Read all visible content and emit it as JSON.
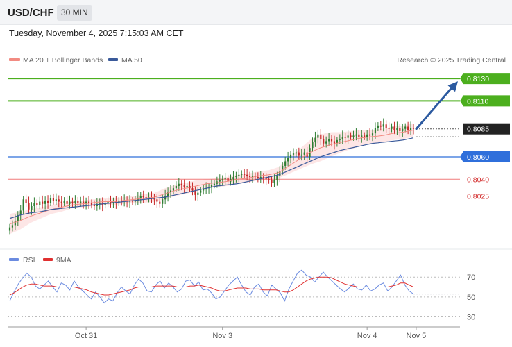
{
  "header": {
    "symbol": "USD/CHF",
    "timeframe": "30 MIN",
    "datetime": "Tuesday, November 4, 2025 7:15:03 AM CET"
  },
  "legend": {
    "ma20_label": "MA 20 + Bollinger Bands",
    "ma50_label": "MA 50",
    "credit": "Research © 2025 Trading Central",
    "rsi_label": "RSI",
    "ma9_label": "9MA"
  },
  "colors": {
    "up_candle": "#2e7d32",
    "down_candle": "#c62828",
    "ma20": "#f28b82",
    "bollinger_fill": "#fde3e3",
    "ma50": "#3a5a9a",
    "resistance": "#4caf1e",
    "support_blue": "#2f6fdb",
    "support_red": "#f07a7a",
    "current_price_bg": "#222222",
    "arrow": "#2c5aa0",
    "rsi": "#6b8be0",
    "rsi_ma": "#e03030"
  },
  "chart_data": [
    {
      "type": "candlestick",
      "title": "",
      "price_levels": [
        {
          "value": "0.8130",
          "kind": "resistance"
        },
        {
          "value": "0.8110",
          "kind": "resistance"
        },
        {
          "value": "0.8085",
          "kind": "current"
        },
        {
          "value": "0.8060",
          "kind": "support"
        },
        {
          "value": "0.8040",
          "kind": "support"
        },
        {
          "value": "0.8025",
          "kind": "support"
        }
      ],
      "ylim": [
        0.7985,
        0.814
      ],
      "x_ticks": [
        "Oct 31",
        "Nov 3",
        "Nov 4",
        "Nov 5"
      ],
      "x_tick_index": [
        28,
        78,
        131,
        149
      ],
      "closes": [
        0.7997,
        0.7999,
        0.8003,
        0.8008,
        0.8012,
        0.8022,
        0.8019,
        0.8013,
        0.8016,
        0.8019,
        0.8017,
        0.802,
        0.8018,
        0.8021,
        0.8019,
        0.8023,
        0.8021,
        0.8022,
        0.802,
        0.8019,
        0.8021,
        0.8018,
        0.802,
        0.8019,
        0.8021,
        0.8019,
        0.802,
        0.8018,
        0.802,
        0.8019,
        0.8017,
        0.8016,
        0.8018,
        0.8019,
        0.8017,
        0.8019,
        0.802,
        0.8019,
        0.802,
        0.8019,
        0.8021,
        0.802,
        0.8021,
        0.802,
        0.8021,
        0.802,
        0.8021,
        0.8023,
        0.8025,
        0.8024,
        0.8023,
        0.8024,
        0.8023,
        0.8022,
        0.802,
        0.8018,
        0.8022,
        0.8025,
        0.8029,
        0.803,
        0.8032,
        0.8034,
        0.8036,
        0.8035,
        0.8033,
        0.8034,
        0.8032,
        0.803,
        0.8026,
        0.8028,
        0.803,
        0.8031,
        0.8032,
        0.8033,
        0.8035,
        0.8036,
        0.8038,
        0.8039,
        0.804,
        0.8041,
        0.8038,
        0.804,
        0.8042,
        0.8043,
        0.8044,
        0.8045,
        0.8044,
        0.8043,
        0.8042,
        0.8043,
        0.8042,
        0.8041,
        0.8042,
        0.8041,
        0.804,
        0.8039,
        0.8037,
        0.8039,
        0.8043,
        0.8047,
        0.8052,
        0.8056,
        0.8059,
        0.8062,
        0.8063,
        0.8064,
        0.8061,
        0.8062,
        0.8064,
        0.806,
        0.8068,
        0.8073,
        0.8077,
        0.808,
        0.8076,
        0.8072,
        0.8074,
        0.8076,
        0.8074,
        0.8072,
        0.8075,
        0.8076,
        0.8078,
        0.8077,
        0.8079,
        0.8078,
        0.8079,
        0.808,
        0.8078,
        0.8079,
        0.8078,
        0.808,
        0.8079,
        0.8081,
        0.8086,
        0.8088,
        0.8087,
        0.8089,
        0.8086,
        0.8085,
        0.8087,
        0.8084,
        0.8086,
        0.8083,
        0.8085,
        0.8087,
        0.8084,
        0.8086,
        0.8085
      ],
      "ma20_series": [
        0.8,
        0.8003,
        0.8007,
        0.801,
        0.8013,
        0.8015,
        0.8017,
        0.8018,
        0.8019,
        0.802,
        0.802,
        0.8021,
        0.8022,
        0.8023,
        0.8024,
        0.8027,
        0.803,
        0.8032,
        0.8034,
        0.8036,
        0.8037,
        0.8038,
        0.804,
        0.8041,
        0.8043,
        0.8044,
        0.8046,
        0.8052,
        0.8058,
        0.8064,
        0.8068,
        0.8071,
        0.8073,
        0.8075,
        0.8077,
        0.8078,
        0.8079,
        0.8081,
        0.8082,
        0.8084
      ],
      "ma50_series": [
        0.8005,
        0.8008,
        0.801,
        0.8011,
        0.8013,
        0.8014,
        0.8015,
        0.8016,
        0.8017,
        0.8018,
        0.8019,
        0.802,
        0.8021,
        0.8022,
        0.8023,
        0.8024,
        0.8026,
        0.8028,
        0.803,
        0.8032,
        0.8034,
        0.8035,
        0.8036,
        0.8038,
        0.804,
        0.8042,
        0.8044,
        0.8048,
        0.8052,
        0.8056,
        0.806,
        0.8063,
        0.8066,
        0.8068,
        0.807,
        0.8072,
        0.8073,
        0.8074,
        0.8075,
        0.8077
      ],
      "bb_width": [
        0.0009,
        0.0008,
        0.0006,
        0.0005,
        0.0004,
        0.0004,
        0.0003,
        0.0003,
        0.0003,
        0.0003,
        0.0003,
        0.0003,
        0.0003,
        0.0004,
        0.0004,
        0.0005,
        0.0005,
        0.0005,
        0.0005,
        0.0004,
        0.0004,
        0.0004,
        0.0004,
        0.0004,
        0.0004,
        0.0004,
        0.0005,
        0.0007,
        0.0009,
        0.0011,
        0.0012,
        0.0011,
        0.0009,
        0.0008,
        0.0007,
        0.0006,
        0.0006,
        0.0006,
        0.0006,
        0.0006
      ],
      "projection_target": 0.813
    },
    {
      "type": "line",
      "title": "",
      "series": [
        {
          "name": "RSI"
        },
        {
          "name": "9MA"
        }
      ],
      "y_ticks": [
        70,
        50,
        30
      ],
      "ylim": [
        22,
        82
      ],
      "rsi": [
        46,
        55,
        63,
        69,
        74,
        70,
        61,
        58,
        62,
        66,
        60,
        55,
        64,
        62,
        57,
        66,
        60,
        56,
        52,
        48,
        55,
        50,
        44,
        48,
        46,
        54,
        60,
        56,
        53,
        62,
        68,
        64,
        56,
        55,
        62,
        66,
        59,
        64,
        60,
        55,
        58,
        66,
        67,
        61,
        65,
        57,
        58,
        54,
        48,
        50,
        56,
        62,
        66,
        70,
        62,
        55,
        52,
        60,
        63,
        55,
        51,
        62,
        58,
        54,
        46,
        58,
        66,
        74,
        77,
        72,
        70,
        65,
        70,
        75,
        70,
        66,
        62,
        58,
        55,
        59,
        63,
        58,
        57,
        62,
        56,
        58,
        62,
        64,
        56,
        60,
        66,
        72,
        62,
        56,
        53
      ],
      "rsi_ma": [
        52,
        54,
        57,
        60,
        62,
        63,
        63,
        62,
        61,
        61,
        61,
        60,
        60,
        60,
        60,
        60,
        59,
        58,
        57,
        55,
        54,
        53,
        52,
        52,
        53,
        54,
        55,
        56,
        57,
        59,
        60,
        60,
        60,
        60,
        61,
        61,
        61,
        61,
        61,
        60,
        60,
        60,
        61,
        61,
        62,
        61,
        60,
        59,
        57,
        56,
        56,
        57,
        58,
        59,
        59,
        59,
        58,
        58,
        58,
        57,
        57,
        57,
        57,
        56,
        55,
        55,
        57,
        60,
        63,
        66,
        68,
        69,
        70,
        70,
        70,
        69,
        67,
        65,
        63,
        62,
        61,
        60,
        60,
        60,
        60,
        60,
        60,
        60,
        60,
        61,
        62,
        64,
        64,
        62,
        60
      ]
    }
  ]
}
